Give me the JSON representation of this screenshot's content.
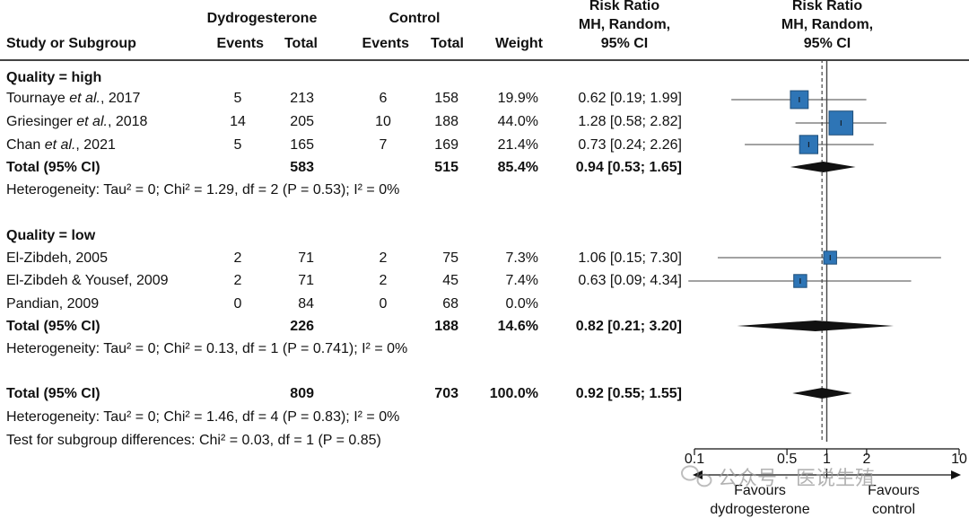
{
  "header": {
    "study": "Study or Subgroup",
    "group1": "Dydrogesterone",
    "group2": "Control",
    "events": "Events",
    "total": "Total",
    "weight": "Weight",
    "rr_text": [
      "Risk Ratio",
      "MH, Random,",
      "95% CI"
    ],
    "rr_plot": [
      "Risk Ratio",
      "MH, Random,",
      "95% CI"
    ]
  },
  "rows": [
    {
      "kind": "subgroup",
      "label": "Quality = high"
    },
    {
      "kind": "study",
      "name": "Tournaye",
      "etal": true,
      "year": ", 2017",
      "e1": "5",
      "n1": "213",
      "e2": "6",
      "n2": "158",
      "weight": "19.9%",
      "ci": "0.62 [0.19; 1.99]"
    },
    {
      "kind": "study",
      "name": "Griesinger",
      "etal": true,
      "year": ", 2018",
      "e1": "14",
      "n1": "205",
      "e2": "10",
      "n2": "188",
      "weight": "44.0%",
      "ci": "1.28 [0.58; 2.82]"
    },
    {
      "kind": "study",
      "name": "Chan",
      "etal": true,
      "year": ", 2021",
      "e1": "5",
      "n1": "165",
      "e2": "7",
      "n2": "169",
      "weight": "21.4%",
      "ci": "0.73 [0.24; 2.26]"
    },
    {
      "kind": "total",
      "label": "Total (95% CI)",
      "n1": "583",
      "n2": "515",
      "weight": "85.4%",
      "ci": "0.94 [0.53; 1.65]"
    },
    {
      "kind": "het",
      "text": "Heterogeneity: Tau² = 0; Chi² = 1.29, df = 2 (P = 0.53); I² = 0%"
    },
    {
      "kind": "subgroup",
      "label": "Quality = low"
    },
    {
      "kind": "study",
      "name": "El-Zibdeh, 2005",
      "e1": "2",
      "n1": "71",
      "e2": "2",
      "n2": "75",
      "weight": "7.3%",
      "ci": "1.06 [0.15; 7.30]"
    },
    {
      "kind": "study",
      "name": "El-Zibdeh & Yousef, 2009",
      "e1": "2",
      "n1": "71",
      "e2": "2",
      "n2": "45",
      "weight": "7.4%",
      "ci": "0.63 [0.09; 4.34]"
    },
    {
      "kind": "study",
      "name": "Pandian, 2009",
      "e1": "0",
      "n1": "84",
      "e2": "0",
      "n2": "68",
      "weight": "0.0%",
      "ci": ""
    },
    {
      "kind": "total",
      "label": "Total (95% CI)",
      "n1": "226",
      "n2": "188",
      "weight": "14.6%",
      "ci": "0.82 [0.21; 3.20]"
    },
    {
      "kind": "het",
      "text": "Heterogeneity: Tau² = 0; Chi² = 0.13, df = 1 (P = 0.741); I² = 0%"
    },
    {
      "kind": "total",
      "label": "Total (95% CI)",
      "n1": "809",
      "n2": "703",
      "weight": "100.0%",
      "ci": "0.92 [0.55; 1.55]"
    },
    {
      "kind": "het",
      "text": "Heterogeneity: Tau² = 0; Chi² = 1.46, df = 4 (P = 0.83); I² = 0%"
    },
    {
      "kind": "het",
      "text": "Test for subgroup differences: Chi² = 0.03, df = 1 (P = 0.85)"
    }
  ],
  "etal_text": "et al.",
  "axis": {
    "ticks": [
      0.1,
      0.5,
      1,
      2,
      10
    ],
    "tick_labels": [
      "0.1",
      "0.5",
      "1",
      "2",
      "10"
    ],
    "favours_left": [
      "Favours",
      "dydrogesterone"
    ],
    "favours_right": [
      "Favours",
      "control"
    ]
  },
  "watermark": "公众号 · 医说生殖",
  "colors": {
    "square": "#2e75b6",
    "diamond": "#111111",
    "line": "#444444"
  },
  "chart_data": {
    "type": "scatter",
    "scale": "log",
    "xlim": [
      0.1,
      10
    ],
    "reference_line": 1,
    "pooled_dashed_line": 0.92,
    "studies": [
      {
        "name": "Tournaye et al., 2017",
        "rr": 0.62,
        "lo": 0.19,
        "hi": 1.99,
        "weight": 19.9
      },
      {
        "name": "Griesinger et al., 2018",
        "rr": 1.28,
        "lo": 0.58,
        "hi": 2.82,
        "weight": 44.0
      },
      {
        "name": "Chan et al., 2021",
        "rr": 0.73,
        "lo": 0.24,
        "hi": 2.26,
        "weight": 21.4
      },
      {
        "name": "El-Zibdeh, 2005",
        "rr": 1.06,
        "lo": 0.15,
        "hi": 7.3,
        "weight": 7.3
      },
      {
        "name": "El-Zibdeh & Yousef, 2009",
        "rr": 0.63,
        "lo": 0.09,
        "hi": 4.34,
        "weight": 7.4
      }
    ],
    "pooled": [
      {
        "name": "Total (95% CI) high",
        "rr": 0.94,
        "lo": 0.53,
        "hi": 1.65
      },
      {
        "name": "Total (95% CI) low",
        "rr": 0.82,
        "lo": 0.21,
        "hi": 3.2
      },
      {
        "name": "Total (95% CI)",
        "rr": 0.92,
        "lo": 0.55,
        "hi": 1.55
      }
    ]
  }
}
